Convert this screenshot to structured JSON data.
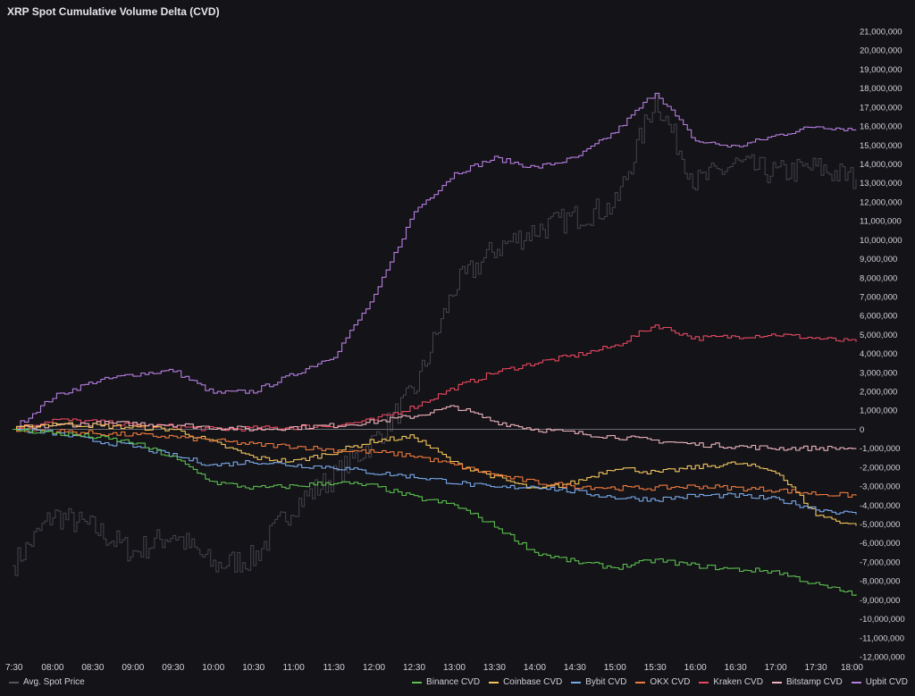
{
  "chart_data": {
    "type": "line",
    "title": "XRP Spot Cumulative Volume Delta (CVD)",
    "x_tick_labels": [
      "7:30",
      "08:00",
      "08:30",
      "09:00",
      "09:30",
      "10:00",
      "10:30",
      "11:00",
      "11:30",
      "12:00",
      "12:30",
      "13:00",
      "13:30",
      "14:00",
      "14:30",
      "15:00",
      "15:30",
      "16:00",
      "16:30",
      "17:00",
      "17:30",
      "18:00"
    ],
    "y_tick_labels": [
      "21,000,000",
      "20,000,000",
      "19,000,000",
      "18,000,000",
      "17,000,000",
      "16,000,000",
      "15,000,000",
      "14,000,000",
      "13,000,000",
      "12,000,000",
      "11,000,000",
      "10,000,000",
      "9,000,000",
      "8,000,000",
      "7,000,000",
      "6,000,000",
      "5,000,000",
      "4,000,000",
      "3,000,000",
      "2,000,000",
      "1,000,000",
      "0",
      "-1,000,000",
      "-2,000,000",
      "-3,000,000",
      "-4,000,000",
      "-5,000,000",
      "-6,000,000",
      "-7,000,000",
      "-8,000,000",
      "-9,000,000",
      "-10,000,000",
      "-11,000,000",
      "-12,000,000"
    ],
    "ylim": [
      -12000000,
      21000000
    ],
    "xlim": [
      "07:30",
      "18:00"
    ],
    "grid": false,
    "legend_position": "bottom",
    "x": [
      "07:30",
      "08:00",
      "08:30",
      "09:00",
      "09:30",
      "10:00",
      "10:30",
      "11:00",
      "11:30",
      "12:00",
      "12:30",
      "13:00",
      "13:30",
      "14:00",
      "14:30",
      "15:00",
      "15:30",
      "16:00",
      "16:30",
      "17:00",
      "17:30",
      "18:00"
    ],
    "series": [
      {
        "name": "Upbit CVD",
        "color": "#b77ee0",
        "values": [
          0,
          1700000,
          2500000,
          2900000,
          3100000,
          1900000,
          2000000,
          2900000,
          3900000,
          7000000,
          11500000,
          13500000,
          14300000,
          13800000,
          14300000,
          15700000,
          17800000,
          15200000,
          14900000,
          15500000,
          16000000,
          15800000
        ]
      },
      {
        "name": "Kraken CVD",
        "color": "#e8475f",
        "values": [
          0,
          500000,
          400000,
          200000,
          150000,
          0,
          50000,
          100000,
          200000,
          500000,
          1200000,
          2200000,
          3000000,
          3500000,
          3900000,
          4400000,
          5500000,
          4800000,
          4900000,
          5000000,
          4800000,
          4600000
        ]
      },
      {
        "name": "Bitstamp CVD",
        "color": "#f0b4bd",
        "values": [
          0,
          200000,
          300000,
          300000,
          250000,
          100000,
          0,
          100000,
          200000,
          400000,
          700000,
          1200000,
          400000,
          0,
          -200000,
          -400000,
          -600000,
          -800000,
          -900000,
          -1000000,
          -1000000,
          -1000000
        ]
      },
      {
        "name": "Coinbase CVD",
        "color": "#f2c45a",
        "values": [
          0,
          300000,
          200000,
          100000,
          0,
          -700000,
          -1500000,
          -1700000,
          -1200000,
          -600000,
          -400000,
          -1800000,
          -2500000,
          -3200000,
          -2800000,
          -2000000,
          -2300000,
          -2000000,
          -1800000,
          -2200000,
          -4500000,
          -5100000
        ]
      },
      {
        "name": "OKX CVD",
        "color": "#f07a3c",
        "values": [
          0,
          -100000,
          -200000,
          -300000,
          -400000,
          -600000,
          -800000,
          -900000,
          -1100000,
          -1200000,
          -1400000,
          -1900000,
          -2400000,
          -2800000,
          -3000000,
          -3100000,
          -3100000,
          -3000000,
          -3100000,
          -3200000,
          -3400000,
          -3500000
        ]
      },
      {
        "name": "Bybit CVD",
        "color": "#7aa9ea",
        "values": [
          0,
          -200000,
          -600000,
          -900000,
          -1400000,
          -1900000,
          -1700000,
          -1900000,
          -2000000,
          -2300000,
          -2500000,
          -2800000,
          -3100000,
          -3000000,
          -3300000,
          -3600000,
          -3700000,
          -3500000,
          -3500000,
          -3700000,
          -4200000,
          -4500000
        ]
      },
      {
        "name": "Binance CVD",
        "color": "#5cbf4e",
        "values": [
          0,
          -200000,
          -400000,
          -700000,
          -1500000,
          -2800000,
          -3100000,
          -3000000,
          -2800000,
          -3000000,
          -3600000,
          -4000000,
          -5100000,
          -6500000,
          -7000000,
          -7300000,
          -6900000,
          -7200000,
          -7400000,
          -7500000,
          -8200000,
          -8700000
        ]
      }
    ],
    "price_series": {
      "name": "Avg. Spot Price",
      "color": "#44444b",
      "values": [
        -7200000,
        -4500000,
        -5200000,
        -6500000,
        -5500000,
        -7200000,
        -6800000,
        -4000000,
        -2500000,
        -600000,
        2000000,
        7500000,
        9500000,
        10500000,
        11200000,
        11800000,
        17500000,
        13000000,
        14000000,
        13500000,
        13800000,
        13200000
      ]
    }
  },
  "legend_left": {
    "label": "Avg. Spot Price",
    "color": "#55555c"
  },
  "legend_right": [
    {
      "label": "Binance CVD",
      "color": "#5cbf4e"
    },
    {
      "label": "Coinbase CVD",
      "color": "#f2c45a"
    },
    {
      "label": "Bybit CVD",
      "color": "#7aa9ea"
    },
    {
      "label": "OKX CVD",
      "color": "#f07a3c"
    },
    {
      "label": "Kraken CVD",
      "color": "#e8475f"
    },
    {
      "label": "Bitstamp CVD",
      "color": "#f0b4bd"
    },
    {
      "label": "Upbit CVD",
      "color": "#b77ee0"
    }
  ]
}
